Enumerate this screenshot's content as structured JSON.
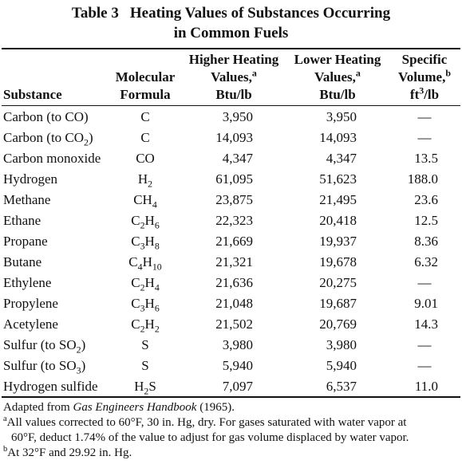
{
  "title": {
    "label": "Table 3",
    "line1": "Heating Values of Substances Occurring",
    "line2": "in Common Fuels"
  },
  "headers": {
    "substance": "Substance",
    "formula": [
      "Molecular",
      "Formula"
    ],
    "hhv": [
      "Higher Heating",
      "Values,a",
      "Btu/lb"
    ],
    "lhv": [
      "Lower Heating",
      "Values,a",
      "Btu/lb"
    ],
    "sv": [
      "Specific",
      "Volume,b",
      "ft3/lb"
    ]
  },
  "rows": [
    {
      "substance": "Carbon (to CO)",
      "formula": "C",
      "hhv": "3,950",
      "lhv": "3,950",
      "sv": "—"
    },
    {
      "substance": "Carbon (to CO2)",
      "formula": "C",
      "hhv": "14,093",
      "lhv": "14,093",
      "sv": "—"
    },
    {
      "substance": "Carbon monoxide",
      "formula": "CO",
      "hhv": "4,347",
      "lhv": "4,347",
      "sv": "13.5"
    },
    {
      "substance": "Hydrogen",
      "formula": "H2",
      "hhv": "61,095",
      "lhv": "51,623",
      "sv": "188.0"
    },
    {
      "substance": "Methane",
      "formula": "CH4",
      "hhv": "23,875",
      "lhv": "21,495",
      "sv": "23.6"
    },
    {
      "substance": "Ethane",
      "formula": "C2H6",
      "hhv": "22,323",
      "lhv": "20,418",
      "sv": "12.5"
    },
    {
      "substance": "Propane",
      "formula": "C3H8",
      "hhv": "21,669",
      "lhv": "19,937",
      "sv": "8.36"
    },
    {
      "substance": "Butane",
      "formula": "C4H10",
      "hhv": "21,321",
      "lhv": "19,678",
      "sv": "6.32"
    },
    {
      "substance": "Ethylene",
      "formula": "C2H4",
      "hhv": "21,636",
      "lhv": "20,275",
      "sv": "—"
    },
    {
      "substance": "Propylene",
      "formula": "C3H6",
      "hhv": "21,048",
      "lhv": "19,687",
      "sv": "9.01"
    },
    {
      "substance": "Acetylene",
      "formula": "C2H2",
      "hhv": "21,502",
      "lhv": "20,769",
      "sv": "14.3"
    },
    {
      "substance": "Sulfur (to SO2)",
      "formula": "S",
      "hhv": "3,980",
      "lhv": "3,980",
      "sv": "—"
    },
    {
      "substance": "Sulfur (to SO3)",
      "formula": "S",
      "hhv": "5,940",
      "lhv": "5,940",
      "sv": "—"
    },
    {
      "substance": "Hydrogen sulfide",
      "formula": "H2S",
      "hhv": "7,097",
      "lhv": "6,537",
      "sv": "11.0"
    }
  ],
  "footer": {
    "source_prefix": "Adapted from ",
    "source_title": "Gas Engineers Handbook",
    "source_suffix": " (1965).",
    "note_a_marker": "a",
    "note_a_line1": "All values corrected to 60°F, 30 in. Hg, dry. For gases saturated with water vapor at",
    "note_a_line2": "60°F, deduct 1.74% of the value to adjust for gas volume displaced by water vapor.",
    "note_b_marker": "b",
    "note_b": "At 32°F and 29.92 in. Hg."
  }
}
